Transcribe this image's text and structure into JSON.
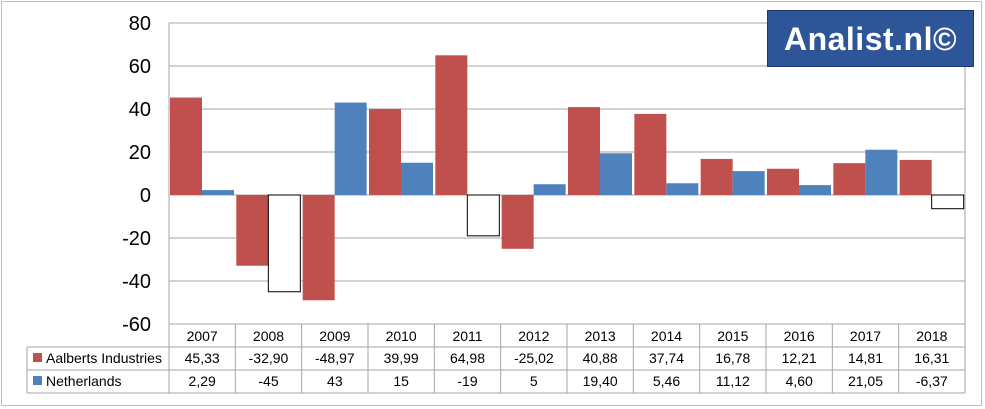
{
  "logo_text": "Analist.nl©",
  "chart_data": {
    "type": "bar",
    "title": "",
    "xlabel": "",
    "ylabel": "",
    "ylim": [
      -60,
      80
    ],
    "yticks": [
      80,
      60,
      40,
      20,
      0,
      -20,
      -40,
      -60
    ],
    "ytick_labels": [
      "80",
      "60",
      "40",
      "20",
      "0",
      "-20",
      "-40",
      "-60"
    ],
    "grid": true,
    "legend": "table-below",
    "categories": [
      "2007",
      "2008",
      "2009",
      "2010",
      "2011",
      "2012",
      "2013",
      "2014",
      "2015",
      "2016",
      "2017",
      "2018"
    ],
    "series": [
      {
        "name": "Aalberts Industries",
        "color": "#c0504d",
        "values": [
          45.33,
          -32.9,
          -48.97,
          39.99,
          64.98,
          -25.02,
          40.88,
          37.74,
          16.78,
          12.21,
          14.81,
          16.31
        ],
        "labels": [
          "45,33",
          "-32,90",
          "-48,97",
          "39,99",
          "64,98",
          "-25,02",
          "40,88",
          "37,74",
          "16,78",
          "12,21",
          "14,81",
          "16,31"
        ]
      },
      {
        "name": "Netherlands",
        "color": "#4f81bd",
        "negative_fill": "#ffffff",
        "values": [
          2.29,
          -45,
          43,
          15,
          -19,
          5,
          19.4,
          5.46,
          11.12,
          4.6,
          21.05,
          -6.37
        ],
        "labels": [
          "2,29",
          "-45",
          "43",
          "15",
          "-19",
          "5",
          "19,40",
          "5,46",
          "11,12",
          "4,60",
          "21,05",
          "-6,37"
        ]
      }
    ]
  }
}
